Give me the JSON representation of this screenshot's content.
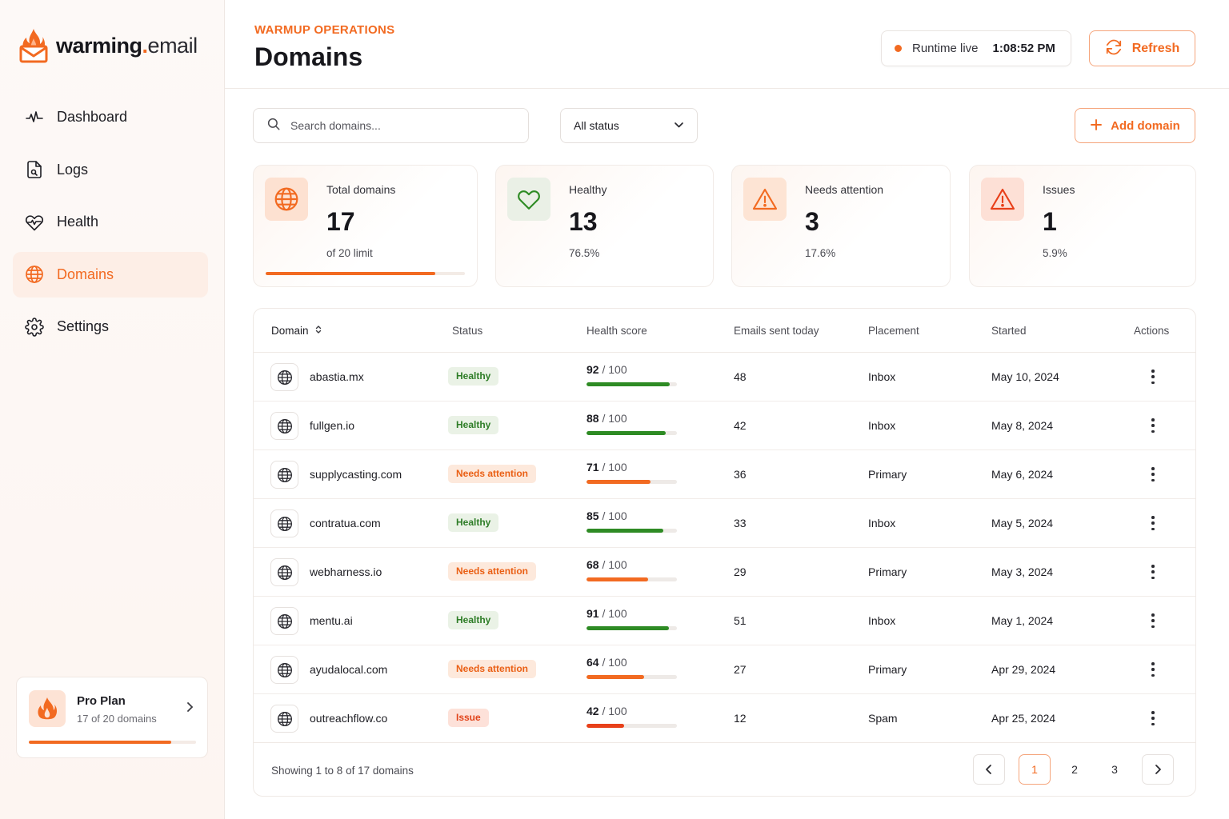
{
  "brand": {
    "name_bold": "warming",
    "dot": ".",
    "name_light": "email"
  },
  "nav": {
    "items": [
      {
        "label": "Dashboard",
        "icon": "activity-icon"
      },
      {
        "label": "Logs",
        "icon": "file-icon"
      },
      {
        "label": "Health",
        "icon": "heart-pulse-icon"
      },
      {
        "label": "Domains",
        "icon": "globe-icon",
        "active": true
      },
      {
        "label": "Settings",
        "icon": "gear-icon"
      }
    ]
  },
  "plan": {
    "title": "Pro Plan",
    "subtitle": "17 of 20 domains",
    "used": 17,
    "limit": 20
  },
  "header": {
    "eyebrow": "WARMUP OPERATIONS",
    "title": "Domains",
    "runtime_label": "Runtime live",
    "runtime_time": "1:08:52 PM",
    "refresh_label": "Refresh"
  },
  "toolbar": {
    "search_placeholder": "Search domains...",
    "status_value": "All status",
    "add_label": "Add domain"
  },
  "stats": [
    {
      "label": "Total domains",
      "value": "17",
      "sub": "of 20 limit",
      "icon": "globe-icon",
      "progress": 0.85
    },
    {
      "label": "Healthy",
      "value": "13",
      "sub": "76.5%",
      "icon": "heart-icon"
    },
    {
      "label": "Needs attention",
      "value": "3",
      "sub": "17.6%",
      "icon": "warning-icon"
    },
    {
      "label": "Issues",
      "value": "1",
      "sub": "5.9%",
      "icon": "warning-icon"
    }
  ],
  "table": {
    "columns": [
      "Domain",
      "Status",
      "Health score",
      "Emails sent today",
      "Placement",
      "Started",
      "Actions"
    ],
    "score_max_label": "/ 100",
    "rows": [
      {
        "domain": "abastia.mx",
        "status": "Healthy",
        "status_type": "healthy",
        "score": "92",
        "sent": "48",
        "placement": "Inbox",
        "started": "May 10, 2024"
      },
      {
        "domain": "fullgen.io",
        "status": "Healthy",
        "status_type": "healthy",
        "score": "88",
        "sent": "42",
        "placement": "Inbox",
        "started": "May 8, 2024"
      },
      {
        "domain": "supplycasting.com",
        "status": "Needs attention",
        "status_type": "attention",
        "score": "71",
        "sent": "36",
        "placement": "Primary",
        "started": "May 6, 2024"
      },
      {
        "domain": "contratua.com",
        "status": "Healthy",
        "status_type": "healthy",
        "score": "85",
        "sent": "33",
        "placement": "Inbox",
        "started": "May 5, 2024"
      },
      {
        "domain": "webharness.io",
        "status": "Needs attention",
        "status_type": "attention",
        "score": "68",
        "sent": "29",
        "placement": "Primary",
        "started": "May 3, 2024"
      },
      {
        "domain": "mentu.ai",
        "status": "Healthy",
        "status_type": "healthy",
        "score": "91",
        "sent": "51",
        "placement": "Inbox",
        "started": "May 1, 2024"
      },
      {
        "domain": "ayudalocal.com",
        "status": "Needs attention",
        "status_type": "attention",
        "score": "64",
        "sent": "27",
        "placement": "Primary",
        "started": "Apr 29, 2024"
      },
      {
        "domain": "outreachflow.co",
        "status": "Issue",
        "status_type": "issue",
        "score": "42",
        "sent": "12",
        "placement": "Spam",
        "started": "Apr 25, 2024"
      }
    ],
    "footer": "Showing 1 to 8 of 17 domains",
    "pages": [
      "1",
      "2",
      "3"
    ],
    "current_page": "1"
  },
  "colors": {
    "accent": "#f26a21",
    "healthy": "#2e8b24",
    "attention": "#f26a21",
    "issue": "#e8401a"
  }
}
